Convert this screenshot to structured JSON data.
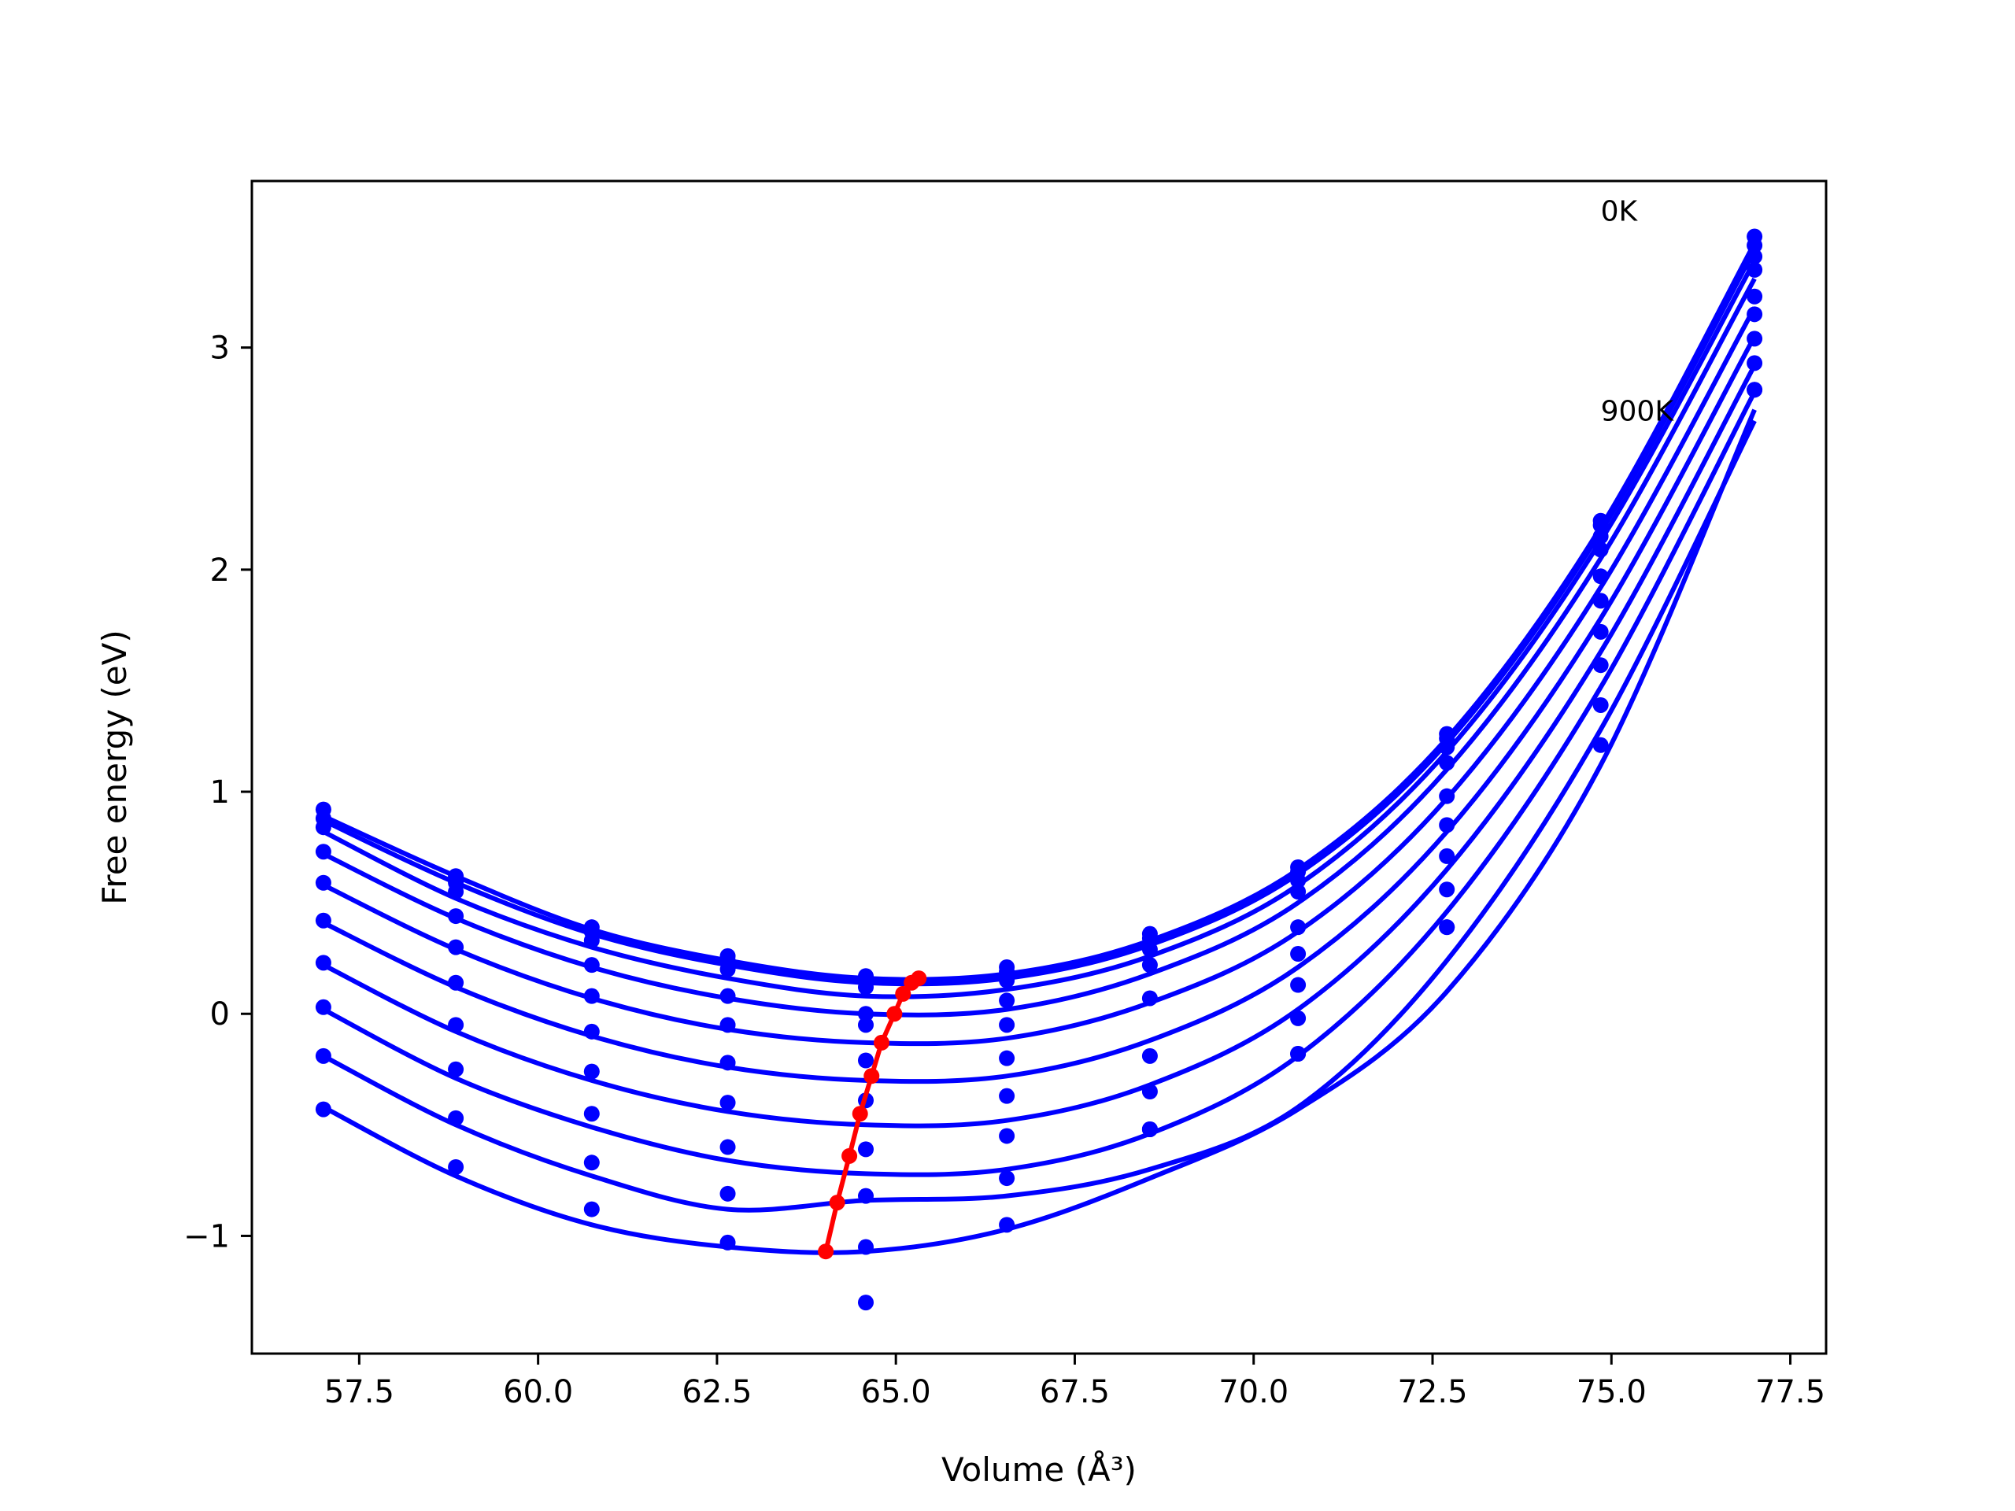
{
  "chart_data": {
    "type": "line",
    "xlabel": "Volume (Å³)",
    "ylabel": "Free energy (eV)",
    "xlim": [
      56.0,
      78.0
    ],
    "ylim": [
      -1.53,
      3.75
    ],
    "xticks": [
      57.5,
      60.0,
      62.5,
      65.0,
      67.5,
      70.0,
      72.5,
      75.0,
      77.5
    ],
    "xtick_labels": [
      "57.5",
      "60.0",
      "62.5",
      "65.0",
      "67.5",
      "70.0",
      "72.5",
      "75.0",
      "77.5"
    ],
    "yticks": [
      -1,
      0,
      1,
      2,
      3
    ],
    "ytick_labels": [
      "−1",
      "0",
      "1",
      "2",
      "3"
    ],
    "grid": false,
    "annotations": [
      {
        "text": "0K",
        "x": 74.85,
        "y": 3.62
      },
      {
        "text": "900K",
        "x": 74.85,
        "y": 2.72
      }
    ],
    "volumes": [
      57.0,
      58.85,
      60.75,
      62.65,
      64.58,
      66.55,
      68.55,
      70.62,
      72.7,
      74.85,
      77.0
    ],
    "series": [
      {
        "fit": [
          0.89,
          0.62,
          0.38,
          0.24,
          0.16,
          0.18,
          0.33,
          0.65,
          1.24,
          2.19,
          3.47
        ],
        "points": [
          0.92,
          0.62,
          0.39,
          0.26,
          0.17,
          0.21,
          0.36,
          0.66,
          1.26,
          2.22,
          3.5
        ]
      },
      {
        "fit": [
          0.87,
          0.59,
          0.36,
          0.22,
          0.14,
          0.16,
          0.31,
          0.63,
          1.22,
          2.17,
          3.44
        ],
        "points": [
          0.88,
          0.59,
          0.37,
          0.24,
          0.16,
          0.19,
          0.34,
          0.64,
          1.24,
          2.2,
          3.46
        ]
      },
      {
        "fit": [
          0.82,
          0.52,
          0.3,
          0.16,
          0.08,
          0.11,
          0.26,
          0.58,
          1.18,
          2.13,
          3.39
        ],
        "points": [
          0.84,
          0.55,
          0.33,
          0.2,
          0.12,
          0.15,
          0.29,
          0.6,
          1.2,
          2.15,
          3.41
        ]
      },
      {
        "fit": [
          0.72,
          0.43,
          0.21,
          0.07,
          0.0,
          0.02,
          0.18,
          0.5,
          1.1,
          2.05,
          3.31
        ],
        "points": [
          0.73,
          0.44,
          0.22,
          0.08,
          0.0,
          0.06,
          0.22,
          0.55,
          1.13,
          2.09,
          3.35
        ]
      },
      {
        "fit": [
          0.58,
          0.29,
          0.07,
          -0.07,
          -0.13,
          -0.11,
          0.05,
          0.37,
          0.97,
          1.92,
          3.18
        ],
        "points": [
          0.59,
          0.3,
          0.08,
          -0.05,
          -0.05,
          -0.05,
          0.07,
          0.39,
          0.98,
          1.97,
          3.23
        ]
      },
      {
        "fit": [
          0.41,
          0.12,
          -0.1,
          -0.24,
          -0.3,
          -0.28,
          -0.12,
          0.21,
          0.82,
          1.78,
          3.05
        ],
        "points": [
          0.42,
          0.14,
          -0.08,
          -0.22,
          -0.21,
          -0.2,
          -0.19,
          0.27,
          0.85,
          1.86,
          3.15
        ]
      },
      {
        "fit": [
          0.22,
          -0.08,
          -0.3,
          -0.44,
          -0.5,
          -0.48,
          -0.32,
          0.02,
          0.65,
          1.63,
          2.92
        ],
        "points": [
          0.23,
          -0.05,
          -0.26,
          -0.4,
          -0.39,
          -0.37,
          -0.35,
          0.13,
          0.71,
          1.72,
          3.04
        ]
      },
      {
        "fit": [
          0.02,
          -0.29,
          -0.51,
          -0.66,
          -0.72,
          -0.7,
          -0.54,
          -0.19,
          0.46,
          1.47,
          2.8
        ],
        "points": [
          0.03,
          -0.25,
          -0.45,
          -0.6,
          -0.61,
          -0.55,
          -0.52,
          -0.02,
          0.56,
          1.57,
          2.93
        ]
      },
      {
        "fit": [
          -0.19,
          -0.5,
          -0.73,
          -0.88,
          -0.84,
          -0.82,
          -0.7,
          -0.42,
          0.24,
          1.28,
          2.67
        ],
        "points": [
          -0.19,
          -0.47,
          -0.67,
          -0.81,
          -0.82,
          -0.74,
          -0.52,
          -0.18,
          0.39,
          1.39,
          2.81
        ]
      },
      {
        "fit": [
          -0.42,
          -0.73,
          -0.95,
          -1.05,
          -1.07,
          -0.97,
          -0.74,
          -0.43,
          0.1,
          1.12,
          2.72
        ],
        "points": [
          -0.43,
          -0.69,
          -0.88,
          -1.03,
          -1.05,
          -0.95,
          -0.52,
          -0.18,
          0.39,
          1.21,
          2.81
        ]
      }
    ],
    "extra_points": [
      {
        "x": 64.58,
        "y": -1.3
      }
    ],
    "minima": {
      "x": [
        65.32,
        65.22,
        65.1,
        64.98,
        64.8,
        64.66,
        64.5,
        64.35,
        64.18,
        64.02
      ],
      "y": [
        0.16,
        0.14,
        0.09,
        0.0,
        -0.13,
        -0.28,
        -0.45,
        -0.64,
        -0.85,
        -1.07
      ]
    },
    "colors": {
      "curves": "#0000ff",
      "minima": "#ff0000"
    }
  }
}
